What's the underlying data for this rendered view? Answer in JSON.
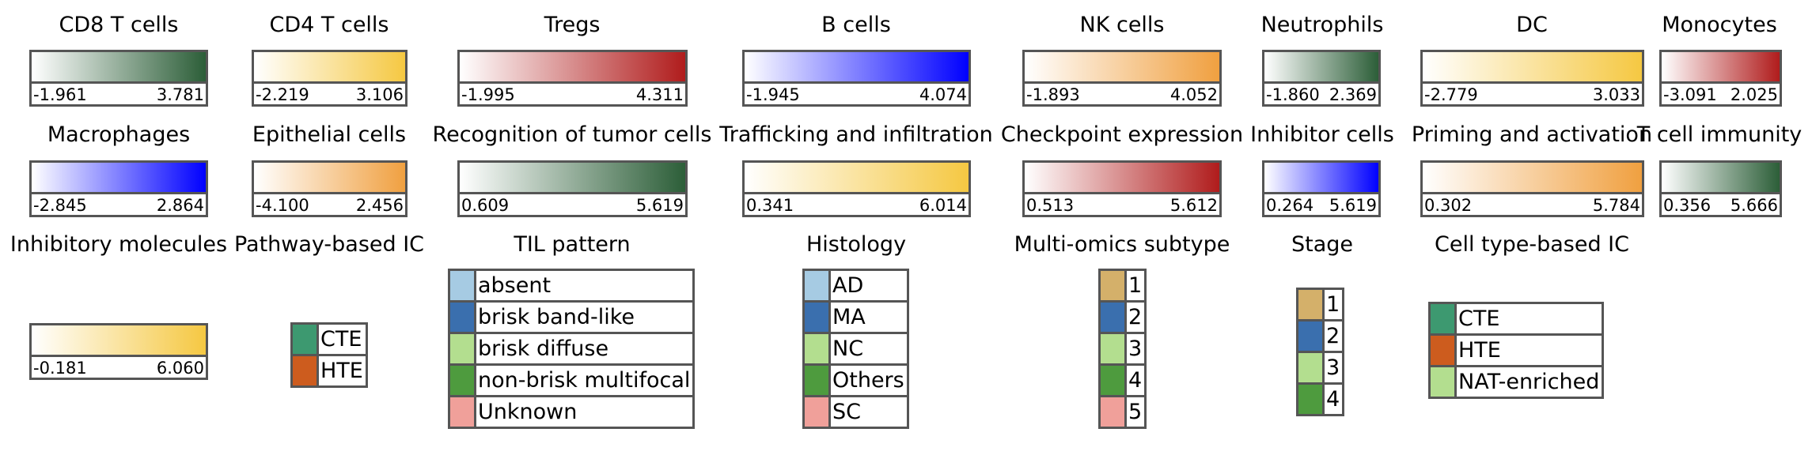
{
  "chart_data": {
    "type": "legend",
    "colorbars": [
      {
        "title": "CD8 T cells",
        "min": "-1.961",
        "max": "3.781",
        "colors": [
          "#ffffff",
          "#2c5e38"
        ]
      },
      {
        "title": "CD4 T cells",
        "min": "-2.219",
        "max": "3.106",
        "colors": [
          "#ffffff",
          "#f5c842"
        ]
      },
      {
        "title": "Tregs",
        "min": "-1.995",
        "max": "4.311",
        "colors": [
          "#ffffff",
          "#b01c1c"
        ]
      },
      {
        "title": "B cells",
        "min": "-1.945",
        "max": "4.074",
        "colors": [
          "#ffffff",
          "#0000ff"
        ]
      },
      {
        "title": "NK cells",
        "min": "-1.893",
        "max": "4.052",
        "colors": [
          "#ffffff",
          "#f0a040"
        ]
      },
      {
        "title": "Neutrophils",
        "min": "-1.860",
        "max": "2.369",
        "colors": [
          "#ffffff",
          "#2c5e38"
        ]
      },
      {
        "title": "DC",
        "min": "-2.779",
        "max": "3.033",
        "colors": [
          "#ffffff",
          "#f5c842"
        ]
      },
      {
        "title": "Monocytes",
        "min": "-3.091",
        "max": "2.025",
        "colors": [
          "#ffffff",
          "#b01c1c"
        ]
      },
      {
        "title": "Macrophages",
        "min": "-2.845",
        "max": "2.864",
        "colors": [
          "#ffffff",
          "#0000ff"
        ]
      },
      {
        "title": "Epithelial cells",
        "min": "-4.100",
        "max": "2.456",
        "colors": [
          "#ffffff",
          "#f0a040"
        ]
      },
      {
        "title": "Recognition of tumor cells",
        "min": "0.609",
        "max": "5.619",
        "colors": [
          "#ffffff",
          "#2c5e38"
        ]
      },
      {
        "title": "Trafficking and infiltration",
        "min": "0.341",
        "max": "6.014",
        "colors": [
          "#ffffff",
          "#f5c842"
        ]
      },
      {
        "title": "Checkpoint expression",
        "min": "0.513",
        "max": "5.612",
        "colors": [
          "#ffffff",
          "#b01c1c"
        ]
      },
      {
        "title": "Inhibitor cells",
        "min": "0.264",
        "max": "5.619",
        "colors": [
          "#ffffff",
          "#0000ff"
        ]
      },
      {
        "title": "Priming and activation",
        "min": "0.302",
        "max": "5.784",
        "colors": [
          "#ffffff",
          "#f0a040"
        ]
      },
      {
        "title": "T cell immunity",
        "min": "0.356",
        "max": "5.666",
        "colors": [
          "#ffffff",
          "#2c5e38"
        ]
      },
      {
        "title": "Inhibitory molecules",
        "min": "-0.181",
        "max": "6.060",
        "colors": [
          "#ffffff",
          "#f5c842"
        ]
      }
    ],
    "legends": [
      {
        "title": "Pathway-based IC",
        "items": [
          {
            "label": "CTE",
            "color": "#3d9970"
          },
          {
            "label": "HTE",
            "color": "#cd5c1e"
          }
        ]
      },
      {
        "title": "TIL pattern",
        "items": [
          {
            "label": "absent",
            "color": "#a6cbe3"
          },
          {
            "label": "brisk band-like",
            "color": "#3a6fae"
          },
          {
            "label": "brisk diffuse",
            "color": "#b3de8f"
          },
          {
            "label": "non-brisk multifocal",
            "color": "#4e9b3e"
          },
          {
            "label": "Unknown",
            "color": "#f0a09a"
          }
        ]
      },
      {
        "title": "Histology",
        "items": [
          {
            "label": "AD",
            "color": "#a6cbe3"
          },
          {
            "label": "MA",
            "color": "#3a6fae"
          },
          {
            "label": "NC",
            "color": "#b3de8f"
          },
          {
            "label": "Others",
            "color": "#4e9b3e"
          },
          {
            "label": "SC",
            "color": "#f0a09a"
          }
        ]
      },
      {
        "title": "Multi-omics subtype",
        "items": [
          {
            "label": "1",
            "color": "#d4b06a"
          },
          {
            "label": "2",
            "color": "#3a6fae"
          },
          {
            "label": "3",
            "color": "#b3de8f"
          },
          {
            "label": "4",
            "color": "#4e9b3e"
          },
          {
            "label": "5",
            "color": "#f0a09a"
          }
        ]
      },
      {
        "title": "Stage",
        "items": [
          {
            "label": "1",
            "color": "#d4b06a"
          },
          {
            "label": "2",
            "color": "#3a6fae"
          },
          {
            "label": "3",
            "color": "#b3de8f"
          },
          {
            "label": "4",
            "color": "#4e9b3e"
          }
        ]
      },
      {
        "title": "Cell type-based IC",
        "items": [
          {
            "label": "CTE",
            "color": "#3d9970"
          },
          {
            "label": "HTE",
            "color": "#cd5c1e"
          },
          {
            "label": "NAT-enriched",
            "color": "#b3de8f"
          }
        ]
      }
    ]
  }
}
